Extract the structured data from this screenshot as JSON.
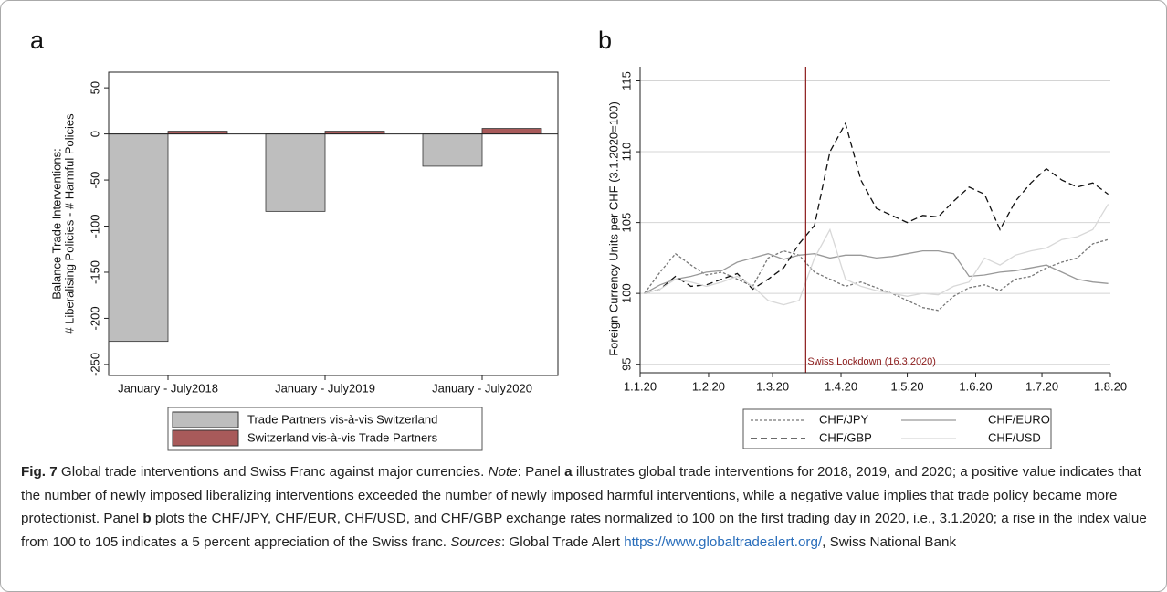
{
  "chart_data": [
    {
      "type": "bar",
      "panel_label": "a",
      "y_label": [
        "Balance Trade Interventions:",
        "# Liberalising Policies - # Harmful Policies"
      ],
      "categories": [
        "January - July2018",
        "January - July2019",
        "January - July2020"
      ],
      "series": [
        {
          "name": "Trade Partners vis-à-vis Switzerland",
          "color": "#bebebe",
          "values": [
            -225,
            -84,
            -35
          ]
        },
        {
          "name": "Switzerland vis-à-vis Trade Partners",
          "color": "#a85a5a",
          "values": [
            3,
            3,
            6
          ]
        }
      ],
      "ylim": [
        -262,
        67
      ],
      "yticks": [
        50,
        0,
        -50,
        -100,
        -150,
        -200,
        -250
      ],
      "grid": false
    },
    {
      "type": "line",
      "panel_label": "b",
      "y_label": "Foreign Currency Units per CHF (3.1.2020=100)",
      "x": [
        "2020-01-03",
        "2020-01-10",
        "2020-01-17",
        "2020-01-24",
        "2020-01-31",
        "2020-02-07",
        "2020-02-14",
        "2020-02-21",
        "2020-02-28",
        "2020-03-06",
        "2020-03-13",
        "2020-03-20",
        "2020-03-27",
        "2020-04-03",
        "2020-04-10",
        "2020-04-17",
        "2020-04-24",
        "2020-05-01",
        "2020-05-08",
        "2020-05-15",
        "2020-05-22",
        "2020-05-29",
        "2020-06-05",
        "2020-06-12",
        "2020-06-19",
        "2020-06-26",
        "2020-07-03",
        "2020-07-10",
        "2020-07-17",
        "2020-07-24",
        "2020-07-31"
      ],
      "xlim": [
        "2020-01-01",
        "2020-08-01"
      ],
      "xticks": [
        {
          "value": "2020-01-01",
          "label": "1.1.20"
        },
        {
          "value": "2020-02-01",
          "label": "1.2.20"
        },
        {
          "value": "2020-03-01",
          "label": "1.3.20"
        },
        {
          "value": "2020-04-01",
          "label": "1.4.20"
        },
        {
          "value": "2020-05-01",
          "label": "1.5.20"
        },
        {
          "value": "2020-06-01",
          "label": "1.6.20"
        },
        {
          "value": "2020-07-01",
          "label": "1.7.20"
        },
        {
          "value": "2020-08-01",
          "label": "1.8.20"
        }
      ],
      "ylim": [
        94.4,
        116
      ],
      "yticks": [
        95,
        100,
        105,
        110,
        115
      ],
      "grid": true,
      "series": [
        {
          "name": "CHF/JPY",
          "color": "#777777",
          "dash": "3,2",
          "values": [
            100,
            101.5,
            102.8,
            102,
            101.3,
            101.5,
            101,
            100.5,
            102.5,
            103,
            102.7,
            101.5,
            101,
            100.5,
            100.8,
            100.4,
            100,
            99.5,
            99,
            98.8,
            99.8,
            100.4,
            100.6,
            100.2,
            101,
            101.2,
            101.8,
            102.2,
            102.5,
            103.5,
            103.8
          ]
        },
        {
          "name": "CHF/EURO",
          "color": "#999999",
          "dash": "none",
          "values": [
            100,
            100.6,
            101,
            101.2,
            101.5,
            101.6,
            102.2,
            102.5,
            102.8,
            102.4,
            102.7,
            102.8,
            102.5,
            102.7,
            102.7,
            102.5,
            102.6,
            102.8,
            103,
            103,
            102.8,
            101.2,
            101.3,
            101.5,
            101.6,
            101.8,
            102,
            101.5,
            101,
            100.8,
            100.7
          ]
        },
        {
          "name": "CHF/GBP",
          "color": "#111111",
          "dash": "7,4",
          "values": [
            100,
            100.3,
            101.2,
            100.5,
            100.6,
            101,
            101.4,
            100.3,
            101,
            101.8,
            103.5,
            104.8,
            110,
            112,
            108,
            106,
            105.5,
            105,
            105.5,
            105.4,
            106.5,
            107.5,
            107,
            104.5,
            106.5,
            107.8,
            108.8,
            108,
            107.5,
            107.8,
            107
          ]
        },
        {
          "name": "CHF/USD",
          "color": "#d8d8d8",
          "dash": "none",
          "values": [
            100,
            100.3,
            101,
            100.8,
            100.5,
            100.8,
            101.2,
            100.5,
            99.5,
            99.2,
            99.5,
            102.5,
            104.5,
            101,
            100.5,
            100.2,
            100,
            99.8,
            100,
            99.9,
            100.5,
            100.8,
            102.5,
            102,
            102.7,
            103,
            103.2,
            103.8,
            104,
            104.5,
            106.3
          ]
        }
      ],
      "annotations": [
        {
          "text": "Swiss Lockdown (16.3.2020)",
          "x": "2020-03-16",
          "color": "#8b1a1a"
        }
      ]
    }
  ],
  "caption": {
    "label": "Fig. 7",
    "parts": [
      " Global trade interventions and Swiss Franc against major currencies. ",
      "Note",
      ": Panel ",
      "a",
      " illustrates global trade interventions for 2018, 2019, and 2020; a positive value indicates that the number of newly imposed liberalizing interventions exceeded the number of newly imposed harmful interventions, while a negative value implies that trade policy became more protectionist. Panel ",
      "b",
      " plots the CHF/JPY, CHF/EUR, CHF/USD, and CHF/GBP exchange rates normalized to 100 on the first trading day in 2020, i.e., 3.1.2020; a rise in the index value from 100 to 105 indicates a 5 percent appreciation of the Swiss franc. ",
      "Sources",
      ": Global Trade Alert ",
      "https://www.globaltradealert.org/",
      ", Swiss National Bank"
    ]
  }
}
